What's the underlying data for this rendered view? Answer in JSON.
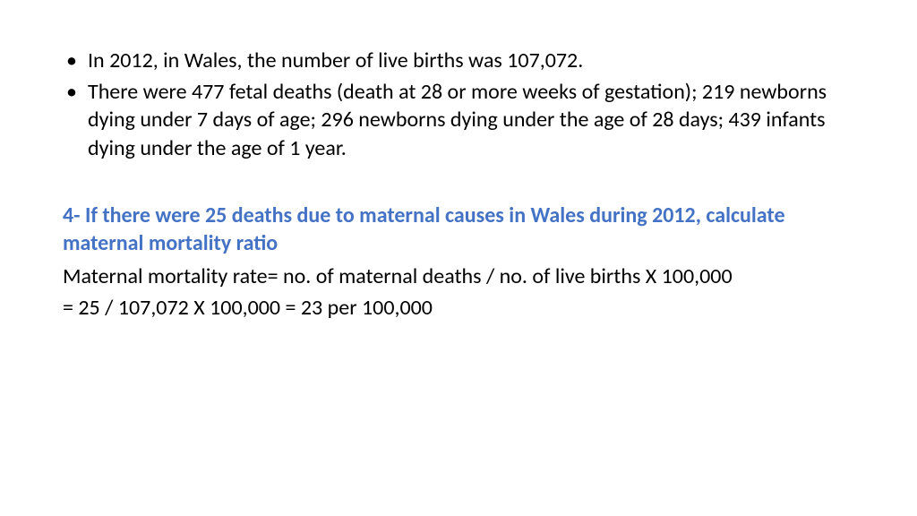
{
  "text_color": "#000000",
  "accent_color": "#4472c4",
  "background_color": "#ffffff",
  "body_fontsize": 24,
  "bullets": [
    "In 2012, in Wales, the number of live births was 107,072.",
    "There were 477 fetal deaths (death at 28 or more weeks of gestation); 219 newborns dying under 7 days of age; 296 newborns dying under the age of 28 days; 439 infants dying under the age of 1 year."
  ],
  "question": "4- If there were 25 deaths due to maternal causes in Wales during 2012, calculate maternal mortality ratio",
  "formula": "Maternal mortality rate= no. of maternal deaths / no. of live births X 100,000",
  "result": "= 25 / 107,072 X 100,000 = 23 per 100,000"
}
